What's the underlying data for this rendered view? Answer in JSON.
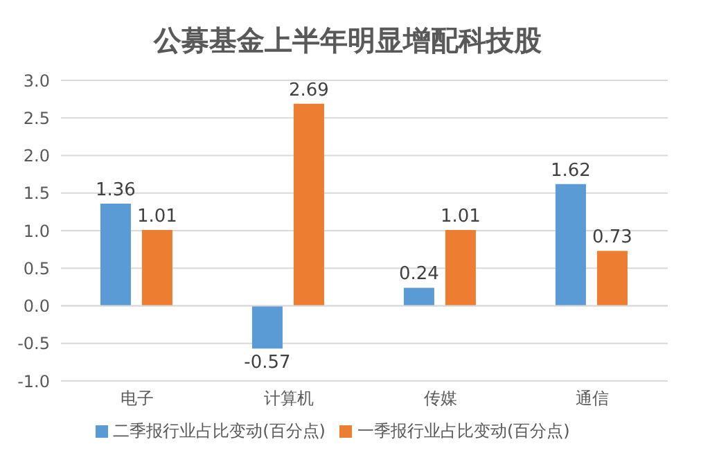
{
  "chart_data": {
    "type": "bar",
    "title": "公募基金上半年明显增配科技股",
    "categories": [
      "电子",
      "计算机",
      "传媒",
      "通信"
    ],
    "series": [
      {
        "name": "二季报行业占比变动(百分点)",
        "color": "#5b9bd5",
        "values": [
          1.36,
          -0.57,
          0.24,
          1.62
        ]
      },
      {
        "name": "一季报行业占比变动(百分点)",
        "color": "#ed7d31",
        "values": [
          1.01,
          2.69,
          1.01,
          0.73
        ]
      }
    ],
    "ylim": [
      -1.0,
      3.0
    ],
    "yticks": [
      {
        "value": -1,
        "label": "-1.0"
      },
      {
        "value": -0.5,
        "label": "-0.5"
      },
      {
        "value": 0,
        "label": "0.0"
      },
      {
        "value": 0.5,
        "label": "0.5"
      },
      {
        "value": 1,
        "label": "1.0"
      },
      {
        "value": 1.5,
        "label": "1.5"
      },
      {
        "value": 2,
        "label": "2.0"
      },
      {
        "value": 2.5,
        "label": "2.5"
      },
      {
        "value": 3,
        "label": "3.0"
      }
    ],
    "grid": "y",
    "legend": "bottom",
    "data_labels": true
  }
}
